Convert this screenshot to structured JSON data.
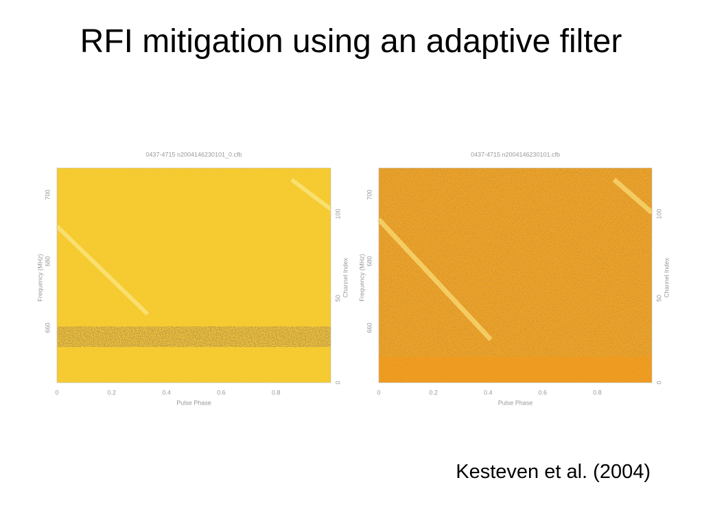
{
  "title": "RFI mitigation using an adaptive filter",
  "figures": [
    {
      "caption": "0437-4715   n2004146230101_0.cfb",
      "xlabel": "Pulse Phase",
      "ylabel": "Frequency (MHz)",
      "y2label": "Channel Index",
      "xticks": [
        "0",
        "0.2",
        "0.4",
        "0.6",
        "0.8"
      ],
      "yticks": [
        "660",
        "680",
        "700"
      ],
      "y2ticks": [
        "0",
        "50",
        "100"
      ]
    },
    {
      "caption": "0437-4715   n2004146230101.cfb",
      "xlabel": "Pulse Phase",
      "ylabel": "Frequency (MHz)",
      "y2label": "Channel Index",
      "xticks": [
        "0",
        "0.2",
        "0.4",
        "0.6",
        "0.8"
      ],
      "yticks": [
        "660",
        "680",
        "700"
      ],
      "y2ticks": [
        "0",
        "50",
        "100"
      ]
    }
  ],
  "citation": "Kesteven et al. (2004)"
}
